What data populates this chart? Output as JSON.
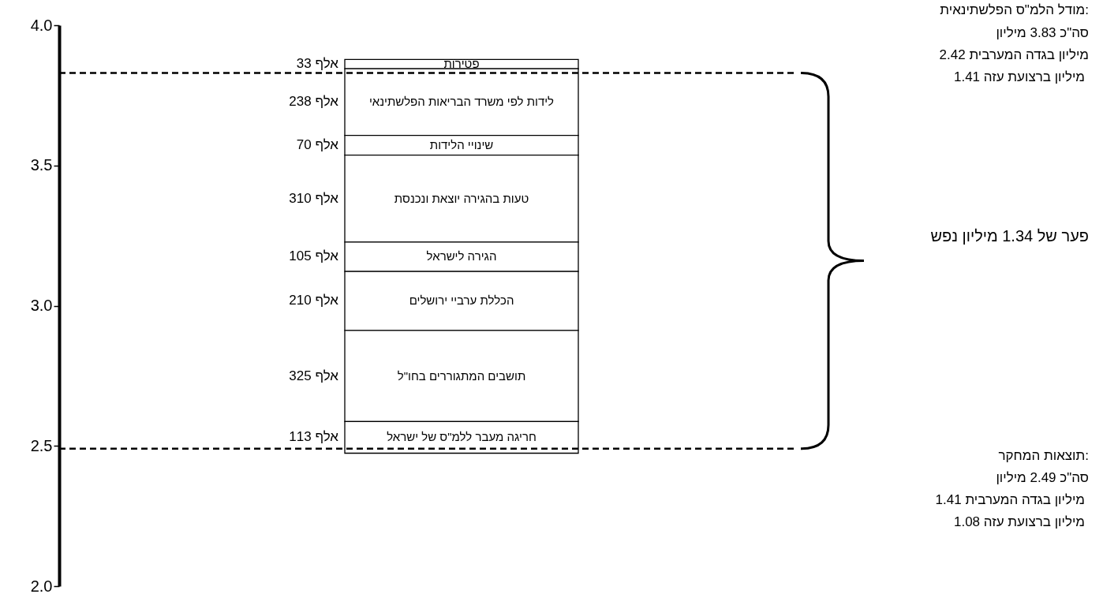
{
  "chart_data": {
    "type": "bar",
    "categories": [
      null
    ],
    "ylim": [
      2,
      4
    ],
    "yticks": [
      {
        "value": 2,
        "label": "2.0"
      },
      {
        "value": 2.5,
        "label": "2.5"
      },
      {
        "value": 3,
        "label": "3.0"
      },
      {
        "value": 3.5,
        "label": "3.5"
      },
      {
        "value": 4,
        "label": "4.0"
      }
    ],
    "grid": false,
    "tick_labels": "y",
    "series": [
      {
        "name": "פטירות",
        "color": "#ffffff",
        "base": [
          3.845
        ],
        "values": [
          0.033
        ]
      },
      {
        "name": "לידות לפי משרד הבריאות הפלשתינאי",
        "color": "#ffffff",
        "base": [
          3.607
        ],
        "values": [
          0.238
        ]
      },
      {
        "name": "שינויי הלידות",
        "color": "#ffffff",
        "base": [
          3.537
        ],
        "values": [
          0.07
        ]
      },
      {
        "name": "טעות בהגירה יוצאת ונכנסת",
        "color": "#ffffff",
        "base": [
          3.227
        ],
        "values": [
          0.31
        ]
      },
      {
        "name": "הגירה לישראל",
        "color": "#ffffff",
        "base": [
          3.122
        ],
        "values": [
          0.105
        ]
      },
      {
        "name": "הכללת ערביי ירושלים",
        "color": "#ffffff",
        "base": [
          2.912
        ],
        "values": [
          0.21
        ]
      },
      {
        "name": "תושבים המתגוררים בחו\"ל",
        "color": "#ffffff",
        "base": [
          2.587
        ],
        "values": [
          0.325
        ]
      },
      {
        "name": "חריגה מעבר ללמ\"ס של ישראל",
        "color": "#ffffff",
        "base": [
          2.474
        ],
        "values": [
          0.113
        ]
      }
    ],
    "ref_lines": [
      {
        "axis": "y",
        "value": 3.83,
        "color": "#000000",
        "line_style": "dashed"
      },
      {
        "axis": "y",
        "value": 2.49,
        "color": "#000000",
        "line_style": "dashed"
      }
    ],
    "annotations": [
      "מודל הלמ\"ס הפלשתינאית:",
      "סה\"כ 3.83 מיליון",
      "2.42 מיליון בגדה המערבית",
      "1.41 מיליון ברצועת עזה",
      "תוצאות המחקר:",
      "סה\"כ 2.49 מיליון",
      "1.41 מיליון בגדה המערבית",
      "1.08 מיליון ברצועת עזה",
      "פער של 1.34 מיליון נפש",
      "33 אלף",
      "238 אלף",
      "70 אלף",
      "310 אלף",
      "105 אלף",
      "210 אלף",
      "325 אלף",
      "113 אלף"
    ]
  }
}
